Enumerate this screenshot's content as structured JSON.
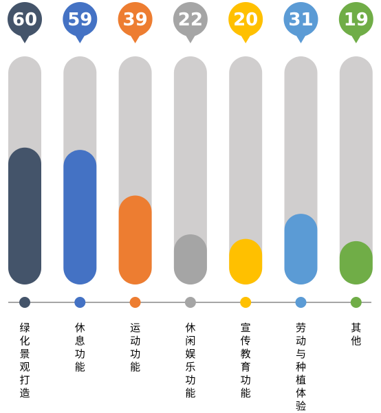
{
  "chart_data": {
    "type": "bar",
    "categories": [
      "绿化景观打造",
      "休息功能",
      "运动功能",
      "休闲娱乐功能",
      "宣传教育功能",
      "劳动与种植体验",
      "其他"
    ],
    "values": [
      60,
      59,
      39,
      22,
      20,
      31,
      19
    ],
    "colors": [
      "#44546a",
      "#4472c4",
      "#ed7d31",
      "#a5a5a5",
      "#ffc000",
      "#5b9bd5",
      "#70ad47"
    ],
    "track_color": "#d0cece",
    "axis_color": "#a6a6a6",
    "title": "",
    "xlabel": "",
    "ylabel": "",
    "ylim": [
      0,
      100
    ],
    "grid": false,
    "legend": "none"
  }
}
